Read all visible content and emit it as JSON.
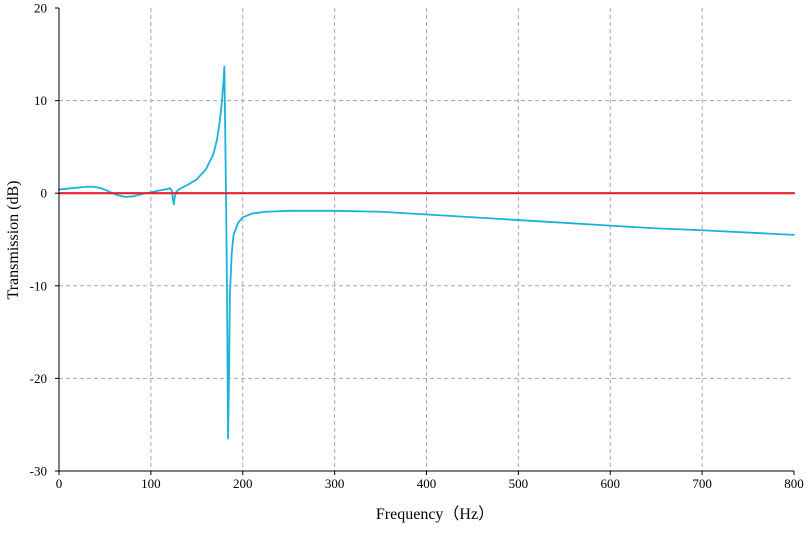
{
  "chart_data": {
    "type": "line",
    "title": "",
    "xlabel": "Frequency（Hz）",
    "ylabel": "Transmission (dB)",
    "xlim": [
      0,
      800
    ],
    "ylim": [
      -30,
      20
    ],
    "x_ticks": [
      0,
      100,
      200,
      300,
      400,
      500,
      600,
      700,
      800
    ],
    "y_ticks": [
      -30,
      -20,
      -10,
      0,
      10,
      20
    ],
    "x_tick_labels": [
      "0",
      "100",
      "200",
      "300",
      "400",
      "500",
      "600",
      "700",
      "800"
    ],
    "y_tick_labels": [
      "-30",
      "-20",
      "-10",
      "0",
      "10",
      "20"
    ],
    "grid": true,
    "legend": "none",
    "series": [
      {
        "color": "#19b3d9",
        "x": [
          0,
          10,
          20,
          30,
          38,
          45,
          52,
          58,
          65,
          72,
          80,
          90,
          100,
          110,
          118,
          121,
          123,
          124,
          125,
          126,
          128,
          132,
          140,
          150,
          160,
          168,
          172,
          175,
          177,
          179,
          180,
          181,
          182,
          183,
          184,
          185,
          186,
          188,
          190,
          195,
          200,
          210,
          225,
          250,
          275,
          300,
          350,
          400,
          450,
          500,
          550,
          600,
          650,
          700,
          750,
          800
        ],
        "y": [
          0.4,
          0.5,
          0.6,
          0.7,
          0.7,
          0.55,
          0.3,
          0,
          -0.25,
          -0.4,
          -0.35,
          -0.1,
          0.1,
          0.3,
          0.45,
          0.55,
          0.2,
          -0.7,
          -1.2,
          -0.4,
          0.2,
          0.5,
          0.9,
          1.5,
          2.6,
          4.2,
          5.8,
          7.8,
          9.6,
          12.0,
          13.7,
          6.0,
          -2.0,
          -12.0,
          -26.5,
          -20.0,
          -11.0,
          -6.5,
          -4.5,
          -3.2,
          -2.6,
          -2.2,
          -2.0,
          -1.9,
          -1.9,
          -1.9,
          -2.0,
          -2.3,
          -2.6,
          -2.9,
          -3.2,
          -3.5,
          -3.8,
          -4.0,
          -4.25,
          -4.5
        ]
      },
      {
        "color": "#e8202a",
        "x": [
          0,
          800
        ],
        "y": [
          0,
          0
        ]
      }
    ]
  }
}
